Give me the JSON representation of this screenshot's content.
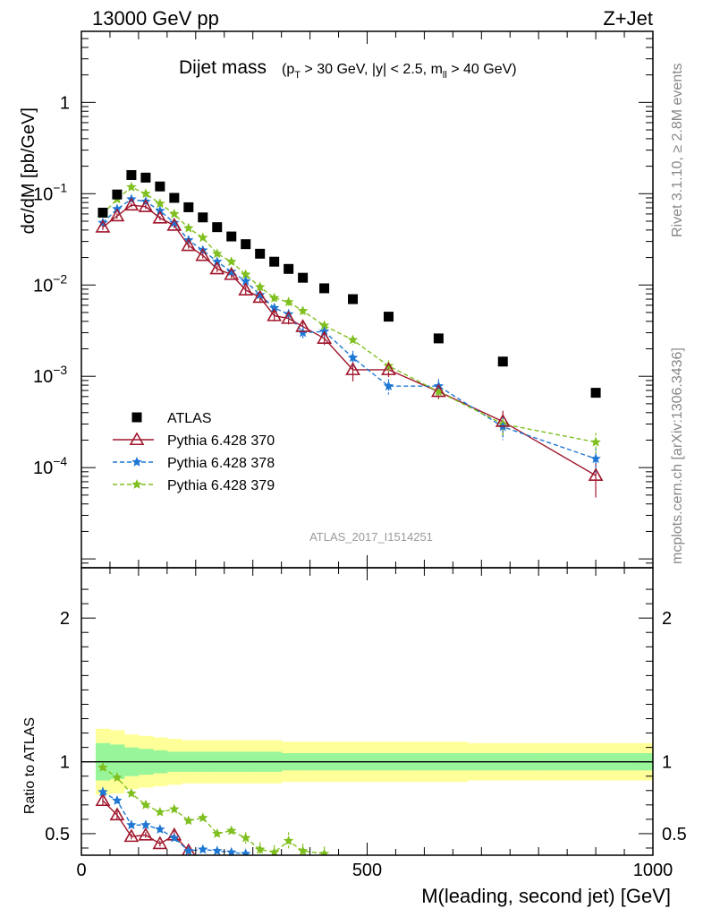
{
  "header": {
    "left": "13000 GeV pp",
    "right": "Z+Jet"
  },
  "side_labels": {
    "rivet": "Rivet 3.1.10, ≥ 2.8M events",
    "mcplots": "mcplots.cern.ch [arXiv:1306.3436]"
  },
  "plot_title": {
    "main": "Dijet mass",
    "cuts": "(p_T > 30 GeV, |y| < 2.5, m_ll > 40 GeV)"
  },
  "analysis_id": "ATLAS_2017_I1514251",
  "colors": {
    "data": "#000000",
    "p370": "#a0162c",
    "p378": "#1f77d4",
    "p379": "#7fbf1f",
    "band_outer": "#ffff99",
    "band_inner": "#99f599"
  },
  "chart_data": [
    {
      "type": "scatter",
      "role": "main",
      "ylabel": "dσ/dM [pb/GeV]",
      "yscale": "log",
      "xlim": [
        0,
        1000
      ],
      "ylim": [
        8e-06,
        6
      ],
      "y_ticks": [
        "10^-4",
        "10^-3",
        "10^-2",
        "10^-1",
        "1"
      ],
      "grid": false,
      "legend_position": "lower-left",
      "series": [
        {
          "name": "ATLAS",
          "marker": "square",
          "x": [
            37.5,
            62.5,
            87.5,
            112.5,
            137.5,
            162.5,
            187.5,
            212.5,
            237.5,
            262.5,
            287.5,
            312.5,
            337.5,
            362.5,
            387.5,
            425,
            475,
            537.5,
            625,
            737.5,
            900
          ],
          "y": [
            0.062,
            0.098,
            0.16,
            0.15,
            0.12,
            0.09,
            0.071,
            0.055,
            0.043,
            0.034,
            0.028,
            0.022,
            0.018,
            0.015,
            0.012,
            0.0092,
            0.007,
            0.0045,
            0.0026,
            0.00145,
            0.00066
          ]
        },
        {
          "name": "Pythia 6.428 370",
          "marker": "triangle-open",
          "line": "solid",
          "x": [
            37.5,
            62.5,
            87.5,
            112.5,
            137.5,
            162.5,
            187.5,
            212.5,
            237.5,
            262.5,
            287.5,
            312.5,
            337.5,
            362.5,
            387.5,
            425,
            475,
            537.5,
            625,
            737.5,
            900
          ],
          "y": [
            0.043,
            0.057,
            0.075,
            0.072,
            0.054,
            0.045,
            0.027,
            0.021,
            0.015,
            0.013,
            0.0088,
            0.0073,
            0.0046,
            0.0043,
            0.0035,
            0.0026,
            0.00118,
            0.00118,
            0.00068,
            0.00032,
            8.2e-05
          ],
          "yerr": [
            0.003,
            0.004,
            0.004,
            0.004,
            0.003,
            0.003,
            0.002,
            0.0015,
            0.0012,
            0.0011,
            0.0009,
            0.0008,
            0.0006,
            0.0006,
            0.0005,
            0.0004,
            0.0003,
            0.0002,
            0.00012,
            0.0001,
            3.5e-05
          ]
        },
        {
          "name": "Pythia 6.428 378",
          "marker": "star",
          "line": "dashed",
          "x": [
            37.5,
            62.5,
            87.5,
            112.5,
            137.5,
            162.5,
            187.5,
            212.5,
            237.5,
            262.5,
            287.5,
            312.5,
            337.5,
            362.5,
            387.5,
            425,
            475,
            537.5,
            625,
            737.5,
            900
          ],
          "y": [
            0.048,
            0.068,
            0.087,
            0.082,
            0.065,
            0.048,
            0.031,
            0.024,
            0.018,
            0.014,
            0.011,
            0.0078,
            0.0056,
            0.0048,
            0.003,
            0.0031,
            0.0016,
            0.00078,
            0.00078,
            0.00028,
            0.000125
          ],
          "yerr": [
            0.003,
            0.004,
            0.004,
            0.004,
            0.003,
            0.003,
            0.002,
            0.0015,
            0.0012,
            0.0011,
            0.0009,
            0.0008,
            0.0006,
            0.0006,
            0.0005,
            0.0004,
            0.0003,
            0.00015,
            0.00015,
            8e-05,
            4e-05
          ]
        },
        {
          "name": "Pythia 6.428 379",
          "marker": "star",
          "line": "dashed",
          "x": [
            37.5,
            62.5,
            87.5,
            112.5,
            137.5,
            162.5,
            187.5,
            212.5,
            237.5,
            262.5,
            287.5,
            312.5,
            337.5,
            362.5,
            387.5,
            425,
            475,
            537.5,
            625,
            737.5,
            900
          ],
          "y": [
            0.06,
            0.087,
            0.118,
            0.1,
            0.078,
            0.06,
            0.042,
            0.033,
            0.022,
            0.018,
            0.013,
            0.0095,
            0.0072,
            0.0065,
            0.0052,
            0.0036,
            0.0025,
            0.0013,
            0.00068,
            0.0003,
            0.00019
          ],
          "yerr": [
            0.003,
            0.004,
            0.005,
            0.005,
            0.004,
            0.003,
            0.002,
            0.0015,
            0.0012,
            0.0011,
            0.0009,
            0.0008,
            0.0007,
            0.0006,
            0.0005,
            0.0004,
            0.0003,
            0.0002,
            0.00012,
            8e-05,
            5e-05
          ]
        }
      ]
    },
    {
      "type": "scatter",
      "role": "ratio",
      "xlabel": "M(leading, second jet) [GeV]",
      "ylabel": "Ratio to ATLAS",
      "xlim": [
        0,
        1000
      ],
      "ylim": [
        0.35,
        2.35
      ],
      "x_ticks": [
        0,
        500,
        1000
      ],
      "y_ticks": [
        0.5,
        1,
        2
      ],
      "bands": {
        "edges": [
          25,
          50,
          75,
          100,
          125,
          150,
          175,
          200,
          225,
          250,
          275,
          300,
          325,
          350,
          375,
          400,
          450,
          500,
          575,
          675,
          800,
          1000
        ],
        "outer": [
          0.23,
          0.22,
          0.19,
          0.18,
          0.17,
          0.16,
          0.15,
          0.15,
          0.15,
          0.15,
          0.15,
          0.15,
          0.15,
          0.14,
          0.14,
          0.14,
          0.14,
          0.14,
          0.14,
          0.13,
          0.13
        ],
        "inner": [
          0.13,
          0.12,
          0.1,
          0.09,
          0.08,
          0.07,
          0.07,
          0.07,
          0.07,
          0.07,
          0.07,
          0.07,
          0.07,
          0.06,
          0.06,
          0.06,
          0.06,
          0.06,
          0.06,
          0.06,
          0.06
        ]
      },
      "series": [
        {
          "name": "Pythia 6.428 370",
          "x": [
            37.5,
            62.5,
            87.5,
            112.5,
            137.5,
            162.5,
            187.5
          ],
          "y": [
            0.73,
            0.63,
            0.48,
            0.49,
            0.43,
            0.49,
            0.38
          ],
          "yerr": [
            0.03,
            0.03,
            0.02,
            0.02,
            0.02,
            0.03,
            0.03
          ]
        },
        {
          "name": "Pythia 6.428 378",
          "x": [
            37.5,
            62.5,
            87.5,
            112.5,
            137.5,
            162.5,
            187.5,
            212.5,
            237.5,
            262.5,
            287.5
          ],
          "y": [
            0.79,
            0.73,
            0.56,
            0.56,
            0.53,
            0.47,
            0.38,
            0.39,
            0.38,
            0.37,
            0.36
          ],
          "yerr": [
            0.03,
            0.03,
            0.02,
            0.02,
            0.02,
            0.02,
            0.02,
            0.02,
            0.02,
            0.02,
            0.02
          ]
        },
        {
          "name": "Pythia 6.428 379",
          "x": [
            37.5,
            62.5,
            87.5,
            112.5,
            137.5,
            162.5,
            187.5,
            212.5,
            237.5,
            262.5,
            287.5,
            312.5,
            337.5,
            362.5,
            387.5,
            425
          ],
          "y": [
            0.96,
            0.89,
            0.78,
            0.7,
            0.65,
            0.67,
            0.59,
            0.61,
            0.5,
            0.52,
            0.47,
            0.39,
            0.37,
            0.45,
            0.38,
            0.36
          ],
          "yerr": [
            0.03,
            0.03,
            0.03,
            0.03,
            0.02,
            0.03,
            0.03,
            0.03,
            0.03,
            0.03,
            0.04,
            0.05,
            0.05,
            0.06,
            0.05,
            0.05
          ]
        }
      ]
    }
  ]
}
